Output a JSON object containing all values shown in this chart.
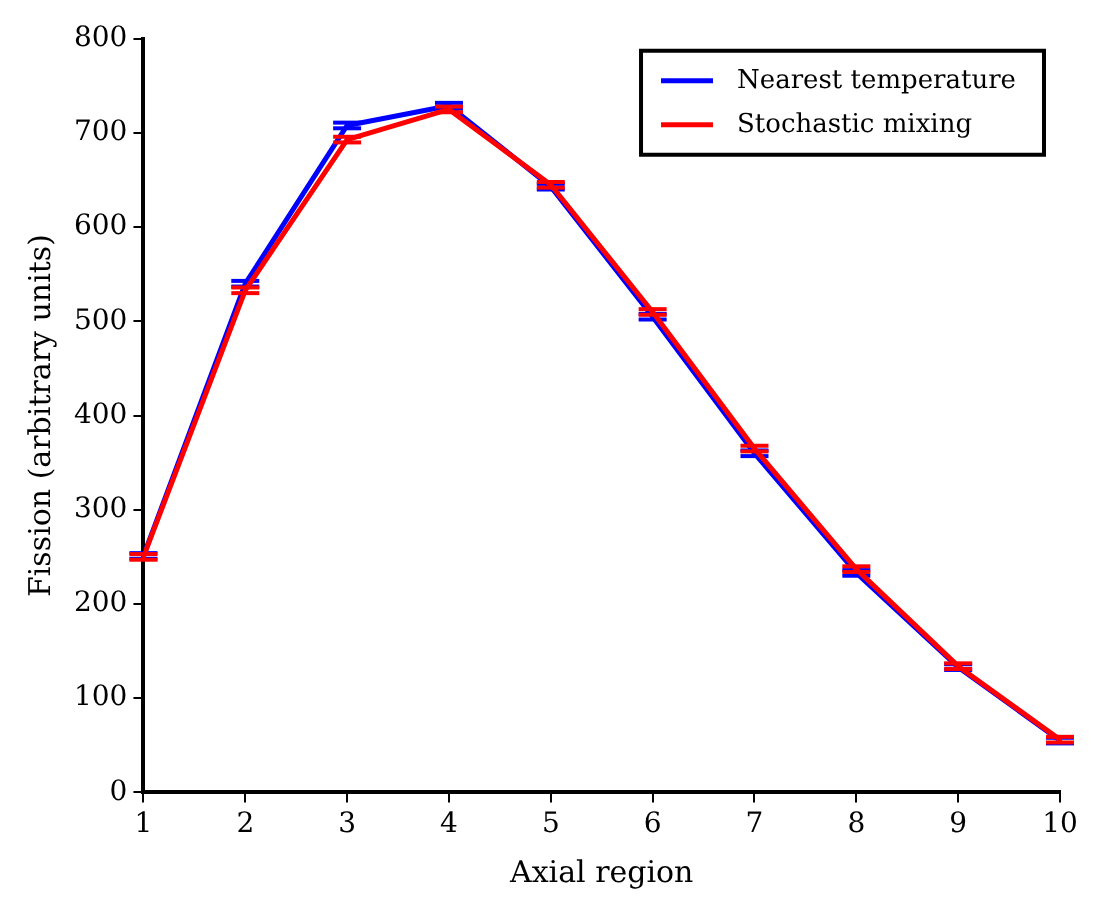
{
  "chart_data": {
    "type": "line",
    "xlabel": "Axial region",
    "ylabel": "Fission (arbitrary units)",
    "x": [
      1,
      2,
      3,
      4,
      5,
      6,
      7,
      8,
      9,
      10
    ],
    "series": [
      {
        "name": "Nearest temperature",
        "color": "#0000ff",
        "values": [
          251,
          540,
          708,
          729,
          643,
          505,
          360,
          233,
          133,
          55
        ],
        "errors": [
          3,
          3,
          3,
          3,
          3,
          3,
          3,
          3,
          3,
          3
        ]
      },
      {
        "name": "Stochastic mixing",
        "color": "#ff0000",
        "values": [
          250,
          533,
          693,
          725,
          645,
          510,
          365,
          237,
          134,
          56
        ],
        "errors": [
          3,
          3,
          3,
          3,
          3,
          3,
          3,
          3,
          3,
          3
        ]
      }
    ],
    "xlim": [
      1,
      10
    ],
    "xticks": [
      1,
      2,
      3,
      4,
      5,
      6,
      7,
      8,
      9,
      10
    ],
    "ylim": [
      0,
      800
    ],
    "yticks": [
      0,
      100,
      200,
      300,
      400,
      500,
      600,
      700,
      800
    ],
    "grid": false,
    "legend": "top right",
    "marker": "none",
    "line_style": "solid"
  }
}
